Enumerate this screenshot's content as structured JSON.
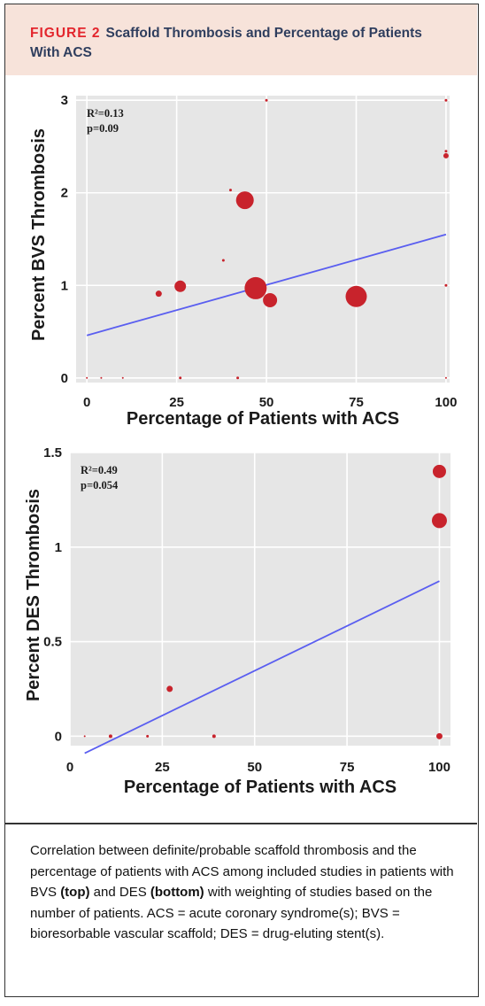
{
  "figure": {
    "label": "FIGURE 2",
    "title": "Scaffold Thrombosis and Percentage of Patients With ACS"
  },
  "caption": {
    "text_1": "Correlation between definite/probable scaffold thrombosis and the percentage of patients with ACS among included studies in patients with BVS ",
    "bold_1": "(top)",
    "text_2": " and DES ",
    "bold_2": "(bottom)",
    "text_3": " with weighting of studies based on the number of patients. ACS = acute coronary syndrome(s); BVS = bioresorbable vascular scaffold; DES = drug-eluting stent(s)."
  },
  "colors": {
    "panel_bg": "#e6e6e6",
    "grid": "#ffffff",
    "point": "#c8232c",
    "fit_line": "#5a5ef0",
    "header_bg": "#f7e3da",
    "accent": "#e3262d",
    "title_text": "#2f3e5e"
  },
  "chart_data": [
    {
      "type": "scatter",
      "xlabel": "Percentage of Patients with ACS",
      "ylabel": "Percent BVS Thrombosis",
      "xlim": [
        -3,
        101
      ],
      "ylim": [
        -0.05,
        3.05
      ],
      "xticks": [
        "0",
        "25",
        "50",
        "75",
        "100"
      ],
      "yticks": [
        "0",
        "1",
        "2",
        "3"
      ],
      "xtick_values": [
        0,
        25,
        50,
        75,
        100
      ],
      "ytick_values": [
        0,
        1,
        2,
        3
      ],
      "stats": [
        "R²=0.13",
        "p=0.09"
      ],
      "fit": {
        "x": [
          0,
          100
        ],
        "y": [
          0.46,
          1.55
        ]
      },
      "points": [
        {
          "x": 0,
          "y": 0,
          "size": 1
        },
        {
          "x": 4,
          "y": 0,
          "size": 1
        },
        {
          "x": 10,
          "y": 0,
          "size": 1
        },
        {
          "x": 26,
          "y": 0,
          "size": 1.5
        },
        {
          "x": 42,
          "y": 0,
          "size": 1.5
        },
        {
          "x": 20,
          "y": 0.91,
          "size": 3.5
        },
        {
          "x": 26,
          "y": 0.99,
          "size": 6.5
        },
        {
          "x": 38,
          "y": 1.27,
          "size": 1.5
        },
        {
          "x": 40,
          "y": 2.03,
          "size": 1.5
        },
        {
          "x": 44,
          "y": 1.92,
          "size": 10
        },
        {
          "x": 47,
          "y": 0.97,
          "size": 12.5
        },
        {
          "x": 50,
          "y": 3.0,
          "size": 1.5
        },
        {
          "x": 51,
          "y": 0.84,
          "size": 8
        },
        {
          "x": 75,
          "y": 0.88,
          "size": 12
        },
        {
          "x": 100,
          "y": 2.4,
          "size": 3
        },
        {
          "x": 100,
          "y": 2.45,
          "size": 1.5
        },
        {
          "x": 100,
          "y": 3.0,
          "size": 1.5
        },
        {
          "x": 100,
          "y": 1.0,
          "size": 1.5
        },
        {
          "x": 100,
          "y": 0,
          "size": 1
        }
      ]
    },
    {
      "type": "scatter",
      "xlabel": "Percentage of Patients with ACS",
      "ylabel": "Percent DES Thrombosis",
      "xlim": [
        0,
        103
      ],
      "ylim": [
        -0.05,
        1.5
      ],
      "xticks": [
        "0",
        "25",
        "50",
        "75",
        "100"
      ],
      "yticks": [
        "0",
        "0.5",
        "1",
        "1.5"
      ],
      "xtick_values": [
        0,
        25,
        50,
        75,
        100
      ],
      "ytick_values": [
        0,
        0.5,
        1,
        1.5
      ],
      "stats": [
        "R²=0.49",
        "p=0.054"
      ],
      "fit": {
        "x": [
          4,
          100
        ],
        "y": [
          -0.09,
          0.82
        ]
      },
      "points": [
        {
          "x": 4,
          "y": 0,
          "size": 1
        },
        {
          "x": 11,
          "y": 0,
          "size": 2
        },
        {
          "x": 21,
          "y": 0,
          "size": 1.5
        },
        {
          "x": 27,
          "y": 0.25,
          "size": 3.5
        },
        {
          "x": 39,
          "y": 0,
          "size": 2
        },
        {
          "x": 100,
          "y": 0,
          "size": 3.5
        },
        {
          "x": 100,
          "y": 1.4,
          "size": 7.5
        },
        {
          "x": 100,
          "y": 1.14,
          "size": 8.5
        }
      ]
    }
  ]
}
